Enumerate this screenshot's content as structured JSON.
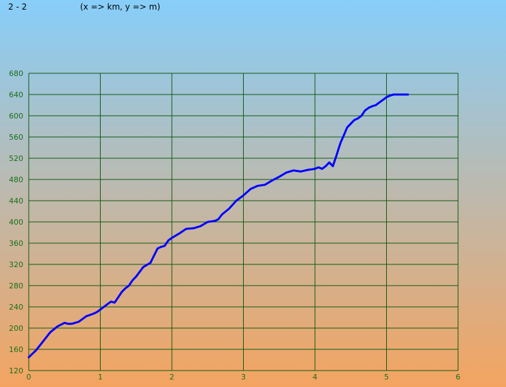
{
  "header": {
    "title": "2 - 2",
    "units_note": "(x => km, y => m)"
  },
  "colors": {
    "grid": "#0f5a0f",
    "tick_text": "#1a6e1a",
    "series": "#0000ff",
    "background_top": "#87cefa",
    "background_bottom": "#f4a460"
  },
  "chart_data": {
    "type": "line",
    "title": "",
    "xlabel": "",
    "ylabel": "",
    "xlim": [
      0,
      6
    ],
    "ylim": [
      120,
      680
    ],
    "xticks": [
      0,
      1,
      2,
      3,
      4,
      5,
      6
    ],
    "yticks": [
      120,
      160,
      200,
      240,
      280,
      320,
      360,
      400,
      440,
      480,
      520,
      560,
      600,
      640,
      680
    ],
    "grid": true,
    "legend": "none",
    "series": [
      {
        "x": [
          0.0,
          0.1,
          0.2,
          0.3,
          0.4,
          0.5,
          0.55,
          0.6,
          0.7,
          0.75,
          0.8,
          0.9,
          0.95,
          1.0,
          1.1,
          1.15,
          1.2,
          1.25,
          1.3,
          1.35,
          1.4,
          1.45,
          1.5,
          1.6,
          1.7,
          1.8,
          1.85,
          1.9,
          1.95,
          2.0,
          2.1,
          2.2,
          2.3,
          2.4,
          2.5,
          2.6,
          2.65,
          2.7,
          2.8,
          2.9,
          3.0,
          3.1,
          3.2,
          3.3,
          3.4,
          3.5,
          3.6,
          3.7,
          3.8,
          3.9,
          3.95,
          4.0,
          4.05,
          4.1,
          4.15,
          4.2,
          4.25,
          4.3,
          4.33,
          4.36,
          4.4,
          4.45,
          4.5,
          4.55,
          4.6,
          4.65,
          4.7,
          4.75,
          4.8,
          4.85,
          4.9,
          4.95,
          5.0,
          5.05,
          5.1,
          5.15,
          5.2,
          5.25,
          5.3
        ],
        "y": [
          145,
          158,
          175,
          192,
          203,
          210,
          208,
          208,
          212,
          217,
          222,
          227,
          230,
          235,
          245,
          250,
          248,
          258,
          268,
          275,
          280,
          290,
          297,
          315,
          323,
          350,
          353,
          355,
          365,
          370,
          378,
          387,
          388,
          392,
          400,
          402,
          405,
          414,
          425,
          440,
          450,
          462,
          468,
          470,
          478,
          485,
          493,
          497,
          495,
          498,
          499,
          500,
          503,
          500,
          505,
          512,
          505,
          525,
          538,
          550,
          562,
          578,
          585,
          592,
          595,
          600,
          610,
          615,
          618,
          620,
          625,
          630,
          635,
          638,
          640,
          640,
          640,
          640,
          640
        ]
      }
    ]
  }
}
